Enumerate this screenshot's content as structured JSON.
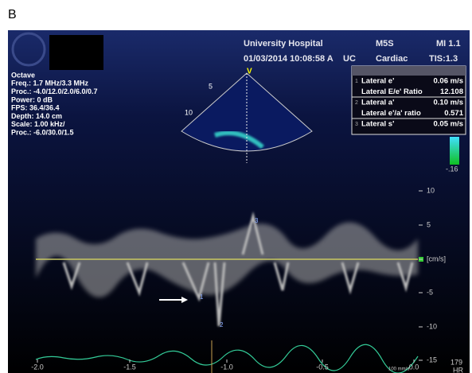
{
  "panel_label": "B",
  "header": {
    "hospital": "University Hospital",
    "probe": "M5S",
    "mi": "MI 1.1",
    "datetime": "01/03/2014 10:08:58 A",
    "mode": "UC",
    "preset": "Cardiac",
    "tis": "TIS:1.3"
  },
  "params": [
    "Octave",
    "Freq.: 1.7 MHz/3.3 MHz",
    "Proc.: -4.0/12.0/2.0/6.0/0.7",
    "Power: 0 dB",
    "FPS: 36.4/36.4",
    "Depth: 14.0 cm",
    "Scale: 1.00 kHz/",
    "Proc.: -6.0/30.0/1.5"
  ],
  "sector": {
    "marker": "V",
    "depth_labels": [
      "5",
      "10"
    ]
  },
  "measurements": {
    "rows": [
      {
        "index": "1",
        "label": "Lateral e'",
        "value": "0.06 m/s"
      },
      {
        "index": "",
        "label": "Lateral E/e' Ratio",
        "value": "12.108"
      },
      {
        "index": "2",
        "label": "Lateral a'",
        "value": "0.10 m/s"
      },
      {
        "index": "",
        "label": "Lateral e'/a' ratio",
        "value": "0.571"
      },
      {
        "index": "3",
        "label": "Lateral s'",
        "value": "0.05 m/s"
      }
    ]
  },
  "color_bar_label": "-.16",
  "velocity_axis": {
    "ticks": [
      "10",
      "5",
      "[cm/s]",
      "-5",
      "-10",
      "-15"
    ]
  },
  "time_axis": {
    "ticks": [
      "-2.0",
      "-1.5",
      "-1.0",
      "-0.5",
      "0.0"
    ]
  },
  "sweep_speed": "100 mm/s",
  "heart_rate": {
    "value": "179",
    "label": "HR"
  },
  "cursor_labels": [
    "1",
    "2",
    "3"
  ]
}
